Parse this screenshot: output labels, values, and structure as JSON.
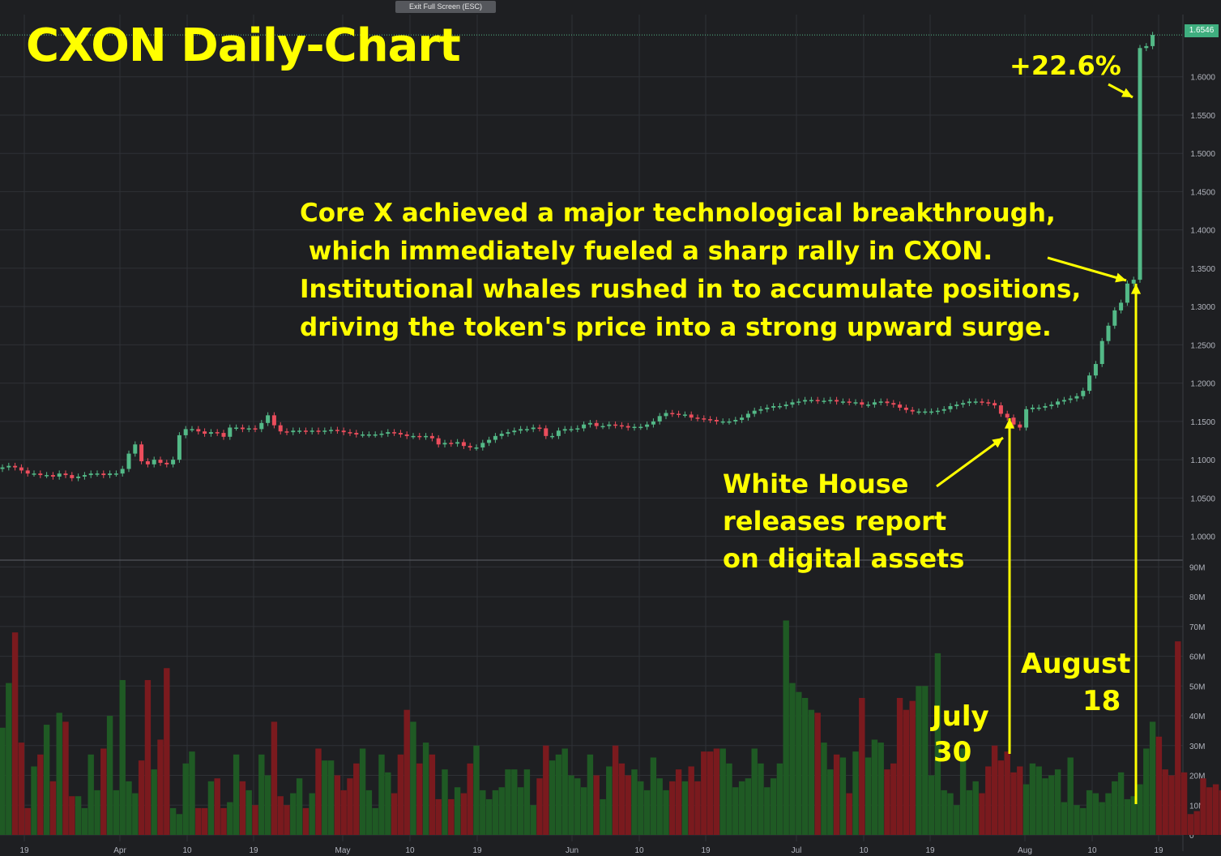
{
  "exit_button": "Exit Full Screen (ESC)",
  "title": "CXON Daily-Chart",
  "last_price_label": "1.6546",
  "annotations": {
    "pct_gain": "+22.6%",
    "core_lines": [
      "Core X achieved a major technological breakthrough,",
      " which immediately fueled a sharp rally in CXON.",
      "Institutional whales rushed in to accumulate positions,",
      "driving the token's price into a strong upward surge."
    ],
    "white_house_lines": [
      "White House",
      "releases report",
      "on digital assets"
    ],
    "july_lines": [
      "July",
      "30"
    ],
    "august_lines": [
      "August",
      "18"
    ]
  },
  "colors": {
    "background": "#1e1f22",
    "grid": "#2f3136",
    "up": "#53b987",
    "down": "#eb4d5c",
    "vol_up": "#1f5a24",
    "vol_down": "#7a1a1e",
    "annotation": "#ffff00",
    "axis_text": "#b2b5be"
  },
  "chart_data": {
    "type": "candlestick",
    "symbol": "CXON",
    "interval": "Daily",
    "price_axis": {
      "ylim": [
        0.97,
        1.66
      ],
      "ticks": [
        "1.0000",
        "1.0500",
        "1.1000",
        "1.1500",
        "1.2000",
        "1.2500",
        "1.3000",
        "1.3500",
        "1.4000",
        "1.4500",
        "1.5000",
        "1.5500",
        "1.6000"
      ],
      "last_price": 1.6546
    },
    "volume_axis": {
      "ylim": [
        0,
        92
      ],
      "unit": "M",
      "ticks": [
        "0",
        "10M",
        "20M",
        "30M",
        "40M",
        "50M",
        "60M",
        "70M",
        "80M",
        "90M"
      ]
    },
    "x_tick_labels": [
      "19",
      "Apr",
      "10",
      "19",
      "May",
      "10",
      "19",
      "Jun",
      "10",
      "19",
      "Jul",
      "10",
      "19",
      "Aug",
      "10",
      "19"
    ],
    "close": [
      1.09,
      1.092,
      1.09,
      1.086,
      1.082,
      1.082,
      1.08,
      1.08,
      1.078,
      1.082,
      1.08,
      1.076,
      1.078,
      1.08,
      1.082,
      1.082,
      1.08,
      1.082,
      1.082,
      1.088,
      1.108,
      1.12,
      1.098,
      1.094,
      1.1,
      1.096,
      1.094,
      1.1,
      1.132,
      1.14,
      1.14,
      1.137,
      1.134,
      1.136,
      1.135,
      1.13,
      1.142,
      1.142,
      1.14,
      1.141,
      1.14,
      1.148,
      1.158,
      1.145,
      1.137,
      1.136,
      1.138,
      1.138,
      1.137,
      1.138,
      1.137,
      1.138,
      1.139,
      1.138,
      1.136,
      1.135,
      1.133,
      1.133,
      1.133,
      1.133,
      1.134,
      1.136,
      1.135,
      1.133,
      1.131,
      1.131,
      1.13,
      1.131,
      1.128,
      1.12,
      1.122,
      1.121,
      1.123,
      1.118,
      1.116,
      1.116,
      1.122,
      1.126,
      1.131,
      1.134,
      1.136,
      1.138,
      1.14,
      1.14,
      1.142,
      1.141,
      1.131,
      1.131,
      1.138,
      1.14,
      1.14,
      1.141,
      1.146,
      1.148,
      1.144,
      1.144,
      1.146,
      1.145,
      1.144,
      1.142,
      1.143,
      1.143,
      1.146,
      1.15,
      1.157,
      1.161,
      1.16,
      1.159,
      1.159,
      1.155,
      1.154,
      1.153,
      1.152,
      1.15,
      1.15,
      1.15,
      1.152,
      1.155,
      1.16,
      1.164,
      1.166,
      1.168,
      1.17,
      1.17,
      1.172,
      1.175,
      1.176,
      1.178,
      1.178,
      1.177,
      1.177,
      1.178,
      1.176,
      1.176,
      1.175,
      1.175,
      1.172,
      1.172,
      1.175,
      1.176,
      1.174,
      1.172,
      1.168,
      1.165,
      1.163,
      1.163,
      1.163,
      1.163,
      1.164,
      1.166,
      1.17,
      1.172,
      1.174,
      1.176,
      1.176,
      1.175,
      1.174,
      1.171,
      1.16,
      1.155,
      1.146,
      1.142,
      1.166,
      1.168,
      1.168,
      1.17,
      1.172,
      1.176,
      1.178,
      1.18,
      1.183,
      1.19,
      1.21,
      1.225,
      1.255,
      1.275,
      1.295,
      1.305,
      1.33,
      1.335,
      1.6375,
      1.64,
      1.6546
    ],
    "open": [
      1.088,
      1.09,
      1.092,
      1.09,
      1.086,
      1.082,
      1.082,
      1.08,
      1.08,
      1.078,
      1.082,
      1.08,
      1.076,
      1.078,
      1.08,
      1.082,
      1.082,
      1.08,
      1.082,
      1.082,
      1.088,
      1.108,
      1.12,
      1.098,
      1.094,
      1.1,
      1.096,
      1.094,
      1.1,
      1.132,
      1.14,
      1.14,
      1.137,
      1.134,
      1.136,
      1.135,
      1.13,
      1.142,
      1.142,
      1.14,
      1.141,
      1.14,
      1.148,
      1.158,
      1.145,
      1.137,
      1.136,
      1.138,
      1.138,
      1.137,
      1.138,
      1.137,
      1.138,
      1.139,
      1.138,
      1.136,
      1.135,
      1.133,
      1.133,
      1.133,
      1.133,
      1.134,
      1.136,
      1.135,
      1.133,
      1.131,
      1.131,
      1.13,
      1.131,
      1.128,
      1.12,
      1.122,
      1.121,
      1.123,
      1.118,
      1.116,
      1.116,
      1.122,
      1.126,
      1.131,
      1.134,
      1.136,
      1.138,
      1.14,
      1.14,
      1.142,
      1.141,
      1.131,
      1.131,
      1.138,
      1.14,
      1.14,
      1.141,
      1.146,
      1.148,
      1.144,
      1.144,
      1.146,
      1.145,
      1.144,
      1.142,
      1.143,
      1.143,
      1.146,
      1.15,
      1.157,
      1.161,
      1.16,
      1.159,
      1.159,
      1.155,
      1.154,
      1.153,
      1.152,
      1.15,
      1.15,
      1.15,
      1.152,
      1.155,
      1.16,
      1.164,
      1.166,
      1.168,
      1.17,
      1.17,
      1.172,
      1.175,
      1.176,
      1.178,
      1.178,
      1.177,
      1.177,
      1.178,
      1.176,
      1.176,
      1.175,
      1.175,
      1.172,
      1.172,
      1.175,
      1.176,
      1.174,
      1.172,
      1.168,
      1.165,
      1.163,
      1.163,
      1.163,
      1.163,
      1.164,
      1.166,
      1.17,
      1.172,
      1.174,
      1.176,
      1.176,
      1.175,
      1.174,
      1.171,
      1.16,
      1.155,
      1.146,
      1.142,
      1.166,
      1.168,
      1.168,
      1.17,
      1.172,
      1.176,
      1.178,
      1.18,
      1.183,
      1.19,
      1.21,
      1.225,
      1.255,
      1.275,
      1.295,
      1.305,
      1.33,
      1.335,
      1.6375,
      1.64
    ],
    "volume_m": [
      36,
      51,
      68,
      31,
      9,
      23,
      27,
      37,
      18,
      41,
      38,
      13,
      13,
      9,
      27,
      15,
      29,
      40,
      15,
      52,
      18,
      14,
      25,
      52,
      22,
      32,
      56,
      9,
      7,
      24,
      28,
      9,
      9,
      18,
      19,
      9,
      11,
      27,
      18,
      15,
      10,
      27,
      20,
      38,
      13,
      10,
      14,
      19,
      9,
      14,
      29,
      25,
      25,
      20,
      15,
      19,
      24,
      29,
      15,
      9,
      27,
      21,
      14,
      27,
      42,
      38,
      24,
      31,
      27,
      12,
      22,
      12,
      16,
      14,
      24,
      30,
      15,
      12,
      15,
      16,
      22,
      22,
      16,
      22,
      10,
      19,
      30,
      25,
      27,
      29,
      20,
      19,
      16,
      27,
      20,
      12,
      23,
      30,
      24,
      20,
      22,
      18,
      15,
      26,
      19,
      15,
      18,
      22,
      18,
      23,
      18,
      28,
      28,
      29,
      29,
      24,
      16,
      18,
      19,
      29,
      24,
      16,
      19,
      24,
      72,
      51,
      48,
      46,
      42,
      41,
      31,
      22,
      27,
      26,
      14,
      28,
      46,
      26,
      32,
      31,
      22,
      24,
      46,
      42,
      45,
      50,
      50,
      20,
      61,
      15,
      14,
      10,
      29,
      15,
      18,
      14,
      23,
      30,
      25,
      28,
      21,
      23,
      17,
      24,
      23,
      19,
      20,
      22,
      11,
      26,
      10,
      9,
      15,
      14,
      11,
      14,
      18,
      21,
      12,
      13,
      17,
      29,
      38,
      33,
      22,
      20,
      65,
      21,
      7,
      8,
      19,
      16,
      17,
      15
    ]
  }
}
